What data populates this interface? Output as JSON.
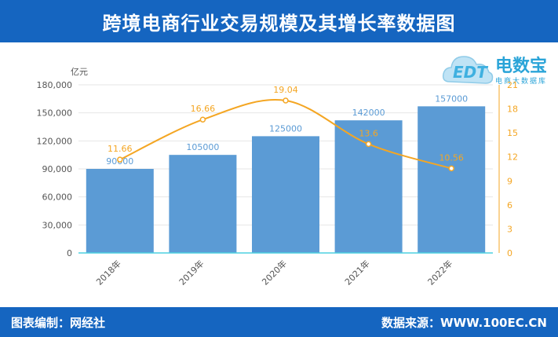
{
  "header": {
    "title": "跨境电商行业交易规模及其增长率数据图"
  },
  "footer": {
    "left": "图表编制：网经社",
    "right": "数据来源：WWW.100EC.CN"
  },
  "logo": {
    "brand": "电数宝",
    "sub": "电商大数据库",
    "mark": "EDT"
  },
  "colors": {
    "bar": "#5b9bd5",
    "line": "#f4a623",
    "header": "#1565c0"
  },
  "chart_data": {
    "type": "bar",
    "categories": [
      "2018年",
      "2019年",
      "2020年",
      "2021年",
      "2022年"
    ],
    "series": [
      {
        "name": "",
        "type": "bar",
        "values": [
          90000,
          105000,
          125000,
          142000,
          157000
        ]
      },
      {
        "name": "",
        "type": "line",
        "values": [
          11.66,
          16.66,
          19.04,
          13.6,
          10.56
        ]
      }
    ],
    "ylabel": "亿元",
    "ylim": [
      0,
      180000
    ],
    "yticks": [
      "0",
      "30,000",
      "60,000",
      "90,000",
      "120,000",
      "150,000",
      "180,000"
    ],
    "y2lim": [
      0,
      21
    ],
    "y2ticks": [
      "0",
      "3",
      "6",
      "9",
      "12",
      "15",
      "18",
      "21"
    ],
    "grid": true
  }
}
